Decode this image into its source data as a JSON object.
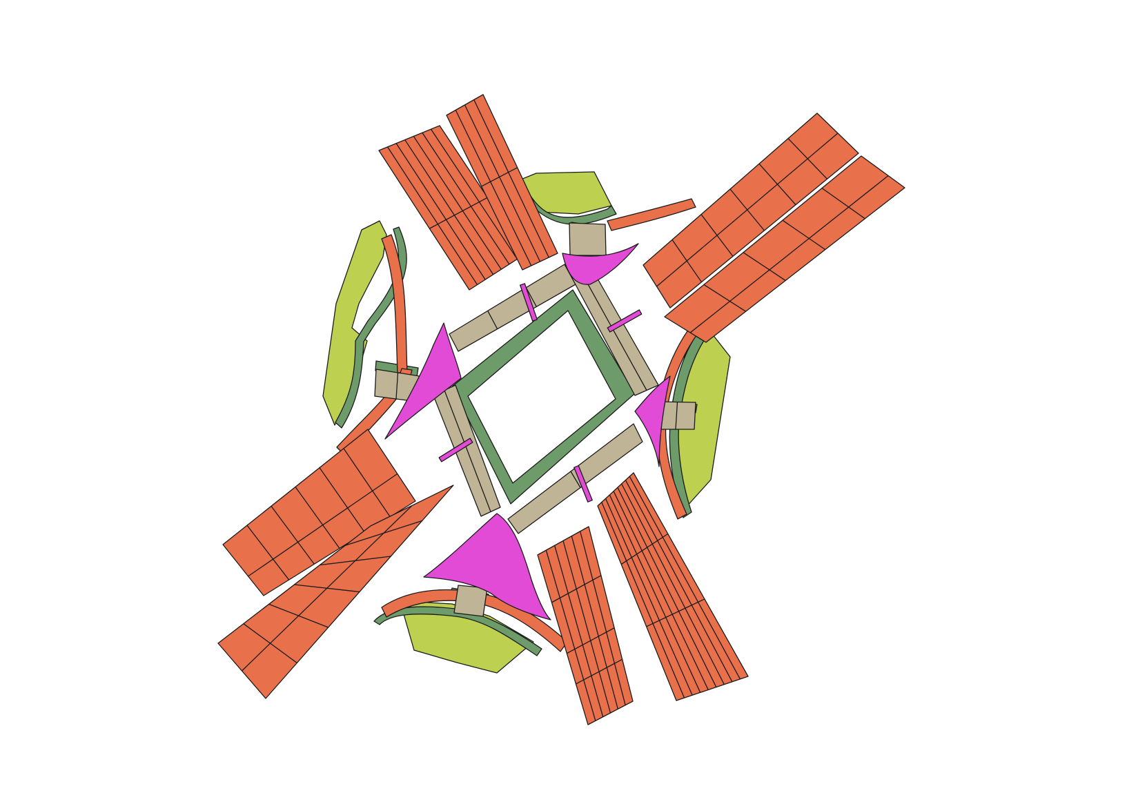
{
  "map": {
    "colors": {
      "road": "#e8704a",
      "median": "#6e9b6a",
      "crosswalk": "#c0b496",
      "island": "#e24bd6",
      "greenery": "#bdd04f",
      "outline": "#1a1a1a",
      "background": "#ffffff"
    }
  }
}
